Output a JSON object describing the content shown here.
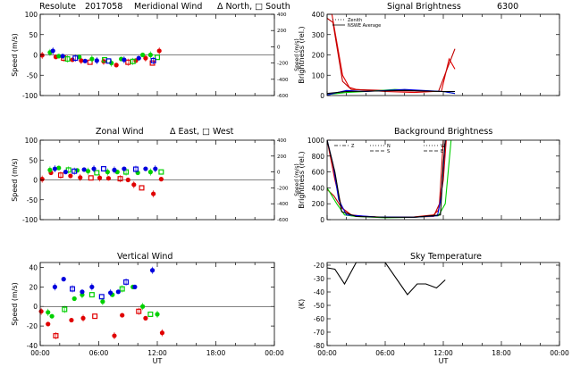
{
  "chart_data": [
    {
      "id": "meridional",
      "type": "scatter",
      "title_parts": [
        "Resolute",
        "2017058",
        "Meridional Wind",
        "Δ North, □ South"
      ],
      "ylabel": "Speed (m/s)",
      "ylabel_right": "Speed (m/s)",
      "ylim": [
        -100,
        100
      ],
      "yticks": [
        -100,
        -50,
        0,
        50,
        100
      ],
      "ylim_right": [
        -600,
        400
      ],
      "yticks_right": [
        -600,
        -400,
        -200,
        0,
        200,
        400
      ],
      "xlim": [
        0,
        24
      ],
      "xtick_labels": [],
      "series": [
        {
          "color": "#e00000",
          "points": [
            [
              0.2,
              -1
            ],
            [
              1.6,
              -5
            ],
            [
              2.4,
              -8
            ],
            [
              3.3,
              -12
            ],
            [
              4.2,
              -14
            ],
            [
              5.1,
              -18
            ],
            [
              6.5,
              -16
            ],
            [
              7.8,
              -25
            ],
            [
              9.0,
              -18
            ],
            [
              9.8,
              -14
            ],
            [
              10.8,
              -8
            ],
            [
              11.5,
              -20
            ],
            [
              12.2,
              10
            ]
          ]
        },
        {
          "color": "#00d000",
          "points": [
            [
              1.0,
              6
            ],
            [
              1.9,
              -3
            ],
            [
              2.8,
              -10
            ],
            [
              4.0,
              -5
            ],
            [
              5.3,
              -10
            ],
            [
              6.6,
              -12
            ],
            [
              7.3,
              -20
            ],
            [
              8.3,
              -10
            ],
            [
              9.5,
              -16
            ],
            [
              10.5,
              0
            ],
            [
              11.3,
              0
            ],
            [
              12.0,
              -6
            ]
          ]
        },
        {
          "color": "#0000dd",
          "points": [
            [
              1.3,
              10
            ],
            [
              2.3,
              -3
            ],
            [
              3.6,
              -8
            ],
            [
              4.6,
              -15
            ],
            [
              5.8,
              -14
            ],
            [
              7.0,
              -15
            ],
            [
              8.6,
              -12
            ],
            [
              10.1,
              -8
            ],
            [
              11.6,
              -14
            ]
          ]
        }
      ]
    },
    {
      "id": "signal",
      "type": "line",
      "title_parts": [
        "Signal Brightness",
        "6300"
      ],
      "ylabel": "Brightness (rel.)",
      "ylim": [
        0,
        400
      ],
      "yticks": [
        0,
        100,
        200,
        300,
        400
      ],
      "xlim": [
        0,
        24
      ],
      "xtick_labels": [],
      "legend": [
        {
          "label": "Zenith",
          "style": "dotted"
        },
        {
          "label": "NSWE Average",
          "style": "solid"
        }
      ],
      "series": [
        {
          "color": "#e00000",
          "points": [
            [
              0,
              410
            ],
            [
              0.5,
              400
            ],
            [
              1.6,
              100
            ],
            [
              2.3,
              40
            ],
            [
              3,
              30
            ],
            [
              6,
              20
            ],
            [
              9,
              15
            ],
            [
              11,
              20
            ],
            [
              11.8,
              20
            ],
            [
              12.6,
              180
            ],
            [
              13.2,
              130
            ]
          ]
        },
        {
          "color": "#c00000",
          "points": [
            [
              0,
              380
            ],
            [
              0.6,
              360
            ],
            [
              1.6,
              70
            ],
            [
              2.5,
              30
            ],
            [
              6,
              25
            ],
            [
              11.5,
              20
            ],
            [
              12.3,
              120
            ],
            [
              13.2,
              230
            ]
          ]
        },
        {
          "color": "#00d000",
          "points": [
            [
              0,
              5
            ],
            [
              2,
              15
            ],
            [
              4,
              20
            ],
            [
              7,
              30
            ],
            [
              9,
              25
            ],
            [
              12,
              20
            ],
            [
              13.2,
              10
            ]
          ]
        },
        {
          "color": "#0000dd",
          "points": [
            [
              0,
              3
            ],
            [
              2,
              25
            ],
            [
              4,
              20
            ],
            [
              8,
              30
            ],
            [
              12,
              20
            ],
            [
              13.2,
              10
            ]
          ]
        },
        {
          "color": "#000000",
          "points": [
            [
              0,
              10
            ],
            [
              2,
              20
            ],
            [
              5,
              22
            ],
            [
              8,
              25
            ],
            [
              12,
              20
            ],
            [
              13.2,
              20
            ]
          ]
        }
      ]
    },
    {
      "id": "zonal",
      "type": "scatter",
      "title_parts": [
        "Zonal Wind",
        "Δ East, □ West"
      ],
      "ylabel": "Speed (m/s)",
      "ylabel_right": "Speed (m/s)",
      "ylim": [
        -100,
        100
      ],
      "yticks": [
        -100,
        -50,
        0,
        50,
        100
      ],
      "ylim_right": [
        -600,
        400
      ],
      "yticks_right": [
        -600,
        -400,
        -200,
        0,
        200,
        400
      ],
      "xlim": [
        0,
        24
      ],
      "xtick_labels": [],
      "series": [
        {
          "color": "#e00000",
          "points": [
            [
              0.2,
              2
            ],
            [
              1.1,
              18
            ],
            [
              2.1,
              12
            ],
            [
              3.1,
              10
            ],
            [
              4.1,
              6
            ],
            [
              5.2,
              5
            ],
            [
              6.1,
              5
            ],
            [
              7.0,
              4
            ],
            [
              8.2,
              3
            ],
            [
              9.0,
              0
            ],
            [
              9.6,
              -12
            ],
            [
              10.4,
              -20
            ],
            [
              11.6,
              -35
            ],
            [
              12.4,
              2
            ]
          ]
        },
        {
          "color": "#00d000",
          "points": [
            [
              1.0,
              25
            ],
            [
              1.9,
              30
            ],
            [
              2.9,
              25
            ],
            [
              3.8,
              24
            ],
            [
              4.9,
              22
            ],
            [
              5.8,
              18
            ],
            [
              6.9,
              20
            ],
            [
              7.9,
              20
            ],
            [
              8.8,
              20
            ],
            [
              10.0,
              18
            ],
            [
              11.3,
              20
            ],
            [
              12.4,
              20
            ]
          ]
        },
        {
          "color": "#0000dd",
          "points": [
            [
              1.5,
              28
            ],
            [
              2.6,
              20
            ],
            [
              3.5,
              22
            ],
            [
              4.5,
              26
            ],
            [
              5.5,
              28
            ],
            [
              6.5,
              28
            ],
            [
              7.6,
              25
            ],
            [
              8.6,
              28
            ],
            [
              9.8,
              27
            ],
            [
              10.8,
              28
            ],
            [
              11.8,
              28
            ]
          ]
        }
      ]
    },
    {
      "id": "background",
      "type": "line",
      "title_parts": [
        "Background Brightness"
      ],
      "ylabel": "Brightness (rel.)",
      "ylim": [
        0,
        1000
      ],
      "yticks": [
        0,
        200,
        400,
        600,
        800,
        1000
      ],
      "xlim": [
        0,
        24
      ],
      "xtick_labels": [],
      "legend": [
        {
          "label": "Z",
          "style": "dashdot"
        },
        {
          "label": "N",
          "style": "dotted"
        },
        {
          "label": "S",
          "style": "dashed"
        },
        {
          "label": "W",
          "style": "dotted"
        },
        {
          "label": "E",
          "style": "dashed"
        }
      ],
      "series": [
        {
          "color": "#e00000",
          "points": [
            [
              0,
              1000
            ],
            [
              0.8,
              500
            ],
            [
              1.5,
              150
            ],
            [
              2.5,
              60
            ],
            [
              4,
              40
            ],
            [
              6,
              30
            ],
            [
              9,
              35
            ],
            [
              11,
              60
            ],
            [
              11.5,
              120
            ],
            [
              12,
              500
            ],
            [
              12.3,
              1000
            ]
          ]
        },
        {
          "color": "#c00000",
          "points": [
            [
              0,
              380
            ],
            [
              0.7,
              300
            ],
            [
              1.5,
              150
            ],
            [
              2.5,
              50
            ],
            [
              5,
              35
            ],
            [
              8,
              30
            ],
            [
              11,
              40
            ],
            [
              11.6,
              200
            ],
            [
              12,
              1000
            ]
          ]
        },
        {
          "color": "#00d000",
          "points": [
            [
              0,
              400
            ],
            [
              1,
              200
            ],
            [
              1.8,
              60
            ],
            [
              3,
              40
            ],
            [
              6,
              25
            ],
            [
              9,
              30
            ],
            [
              11.5,
              50
            ],
            [
              12.2,
              200
            ],
            [
              12.8,
              1000
            ]
          ]
        },
        {
          "color": "#0000dd",
          "points": [
            [
              0,
              1000
            ],
            [
              0.6,
              700
            ],
            [
              1.2,
              250
            ],
            [
              2,
              60
            ],
            [
              5,
              35
            ],
            [
              9,
              30
            ],
            [
              11.4,
              50
            ],
            [
              11.8,
              300
            ],
            [
              12.2,
              1000
            ]
          ]
        },
        {
          "color": "#000000",
          "points": [
            [
              0,
              1000
            ],
            [
              0.8,
              600
            ],
            [
              1.5,
              100
            ],
            [
              3,
              40
            ],
            [
              6,
              30
            ],
            [
              9,
              30
            ],
            [
              11.7,
              60
            ],
            [
              12,
              700
            ],
            [
              12.2,
              1000
            ]
          ]
        }
      ]
    },
    {
      "id": "vertical",
      "type": "scatter",
      "title_parts": [
        "Vertical Wind"
      ],
      "ylabel": "Speed (m/s)",
      "ylim": [
        -40,
        45
      ],
      "yticks": [
        -40,
        -20,
        0,
        20,
        40
      ],
      "xlim": [
        0,
        24
      ],
      "xtick_labels": [
        "00:00",
        "06:00",
        "12:00",
        "18:00",
        "00:00"
      ],
      "xlabel": "UT",
      "series": [
        {
          "color": "#e00000",
          "points": [
            [
              0.1,
              -5
            ],
            [
              0.8,
              -18
            ],
            [
              1.6,
              -30
            ],
            [
              3.2,
              -14
            ],
            [
              4.4,
              -12
            ],
            [
              5.6,
              -10
            ],
            [
              7.6,
              -30
            ],
            [
              8.4,
              -9
            ],
            [
              10.1,
              -5
            ],
            [
              10.8,
              -12
            ],
            [
              12.5,
              -27
            ]
          ]
        },
        {
          "color": "#00d000",
          "points": [
            [
              0.8,
              -6
            ],
            [
              1.2,
              -10
            ],
            [
              2.5,
              -3
            ],
            [
              3.5,
              8
            ],
            [
              4.3,
              12
            ],
            [
              5.3,
              12
            ],
            [
              6.4,
              5
            ],
            [
              7.4,
              12
            ],
            [
              8.4,
              18
            ],
            [
              9.5,
              20
            ],
            [
              10.5,
              0
            ],
            [
              11.3,
              -8
            ],
            [
              12.0,
              -8
            ]
          ]
        },
        {
          "color": "#0000dd",
          "points": [
            [
              1.5,
              20
            ],
            [
              2.4,
              28
            ],
            [
              3.3,
              18
            ],
            [
              4.3,
              15
            ],
            [
              5.3,
              20
            ],
            [
              6.3,
              10
            ],
            [
              7.2,
              14
            ],
            [
              8.0,
              15
            ],
            [
              8.8,
              25
            ],
            [
              9.7,
              20
            ],
            [
              11.5,
              37
            ]
          ]
        }
      ]
    },
    {
      "id": "skytemp",
      "type": "line",
      "title_parts": [
        "Sky Temperature"
      ],
      "ylabel": "(K)",
      "ylim": [
        -80,
        -18
      ],
      "yticks": [
        -80,
        -70,
        -60,
        -50,
        -40,
        -30,
        -20
      ],
      "xlim": [
        0,
        24
      ],
      "xtick_labels": [
        "00:00",
        "06:00",
        "12:00",
        "18:00",
        "00:00"
      ],
      "xlabel": "UT",
      "series": [
        {
          "color": "#000000",
          "points": [
            [
              0,
              -22
            ],
            [
              0.8,
              -23
            ],
            [
              1.8,
              -34
            ],
            [
              3.0,
              -18
            ],
            [
              6.0,
              -18
            ],
            [
              8.3,
              -42
            ],
            [
              9.3,
              -34
            ],
            [
              10.2,
              -34
            ],
            [
              11.3,
              -37
            ],
            [
              12.2,
              -31
            ]
          ]
        }
      ]
    }
  ]
}
